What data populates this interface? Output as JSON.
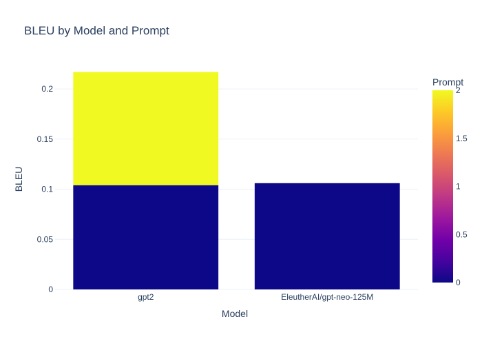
{
  "chart_data": {
    "type": "bar",
    "barmode": "stack",
    "title": "BLEU by Model and Prompt",
    "xlabel": "Model",
    "ylabel": "BLEU",
    "categories": [
      "gpt2",
      "EleutherAI/gpt-neo-125M"
    ],
    "ylim": [
      0,
      0.22
    ],
    "yticks": [
      0,
      0.05,
      0.1,
      0.15,
      0.2
    ],
    "ytick_labels": [
      "0",
      "0.05",
      "0.1",
      "0.15",
      "0.2"
    ],
    "grid": true,
    "bars": [
      {
        "category": "gpt2",
        "prompt": 0,
        "value": 0.104,
        "color": "#0d0887"
      },
      {
        "category": "gpt2",
        "prompt": 2,
        "value": 0.113,
        "color": "#f0f921"
      },
      {
        "category": "EleutherAI/gpt-neo-125M",
        "prompt": 0,
        "value": 0.106,
        "color": "#0d0887"
      }
    ],
    "colorbar": {
      "title": "Prompt",
      "range": [
        0,
        2
      ],
      "ticks": [
        0,
        0.5,
        1,
        1.5,
        2
      ],
      "tick_labels": [
        "0",
        "0.5",
        "1",
        "1.5",
        "2"
      ],
      "colorscale": [
        "#0d0887",
        "#46039f",
        "#7201a8",
        "#9c179e",
        "#bd3786",
        "#d8576b",
        "#ed7953",
        "#fb9f3a",
        "#fdca26",
        "#f0f921"
      ],
      "placement": "right"
    }
  }
}
